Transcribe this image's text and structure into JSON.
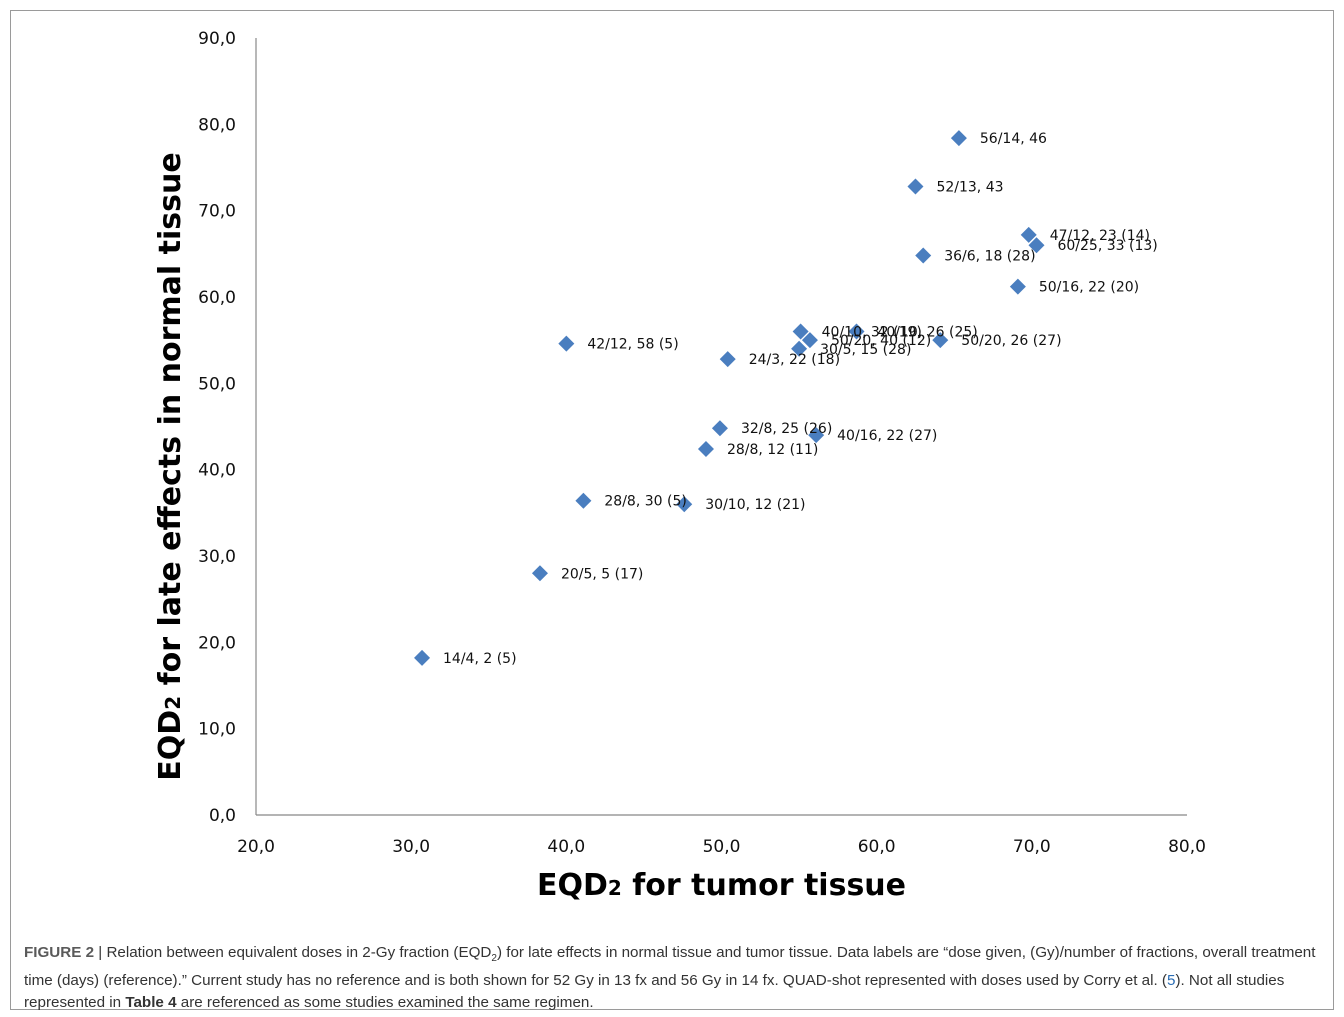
{
  "chart_data": {
    "type": "scatter",
    "xlabel": "EQD2 for tumor tissue",
    "ylabel": "EQD2 for late effects in normal tissue",
    "xlim": [
      20,
      80
    ],
    "ylim": [
      0,
      90
    ],
    "x_ticks": [
      "20,0",
      "30,0",
      "40,0",
      "50,0",
      "60,0",
      "70,0",
      "80,0"
    ],
    "y_ticks": [
      "0,0",
      "10,0",
      "20,0",
      "30,0",
      "40,0",
      "50,0",
      "60,0",
      "70,0",
      "80,0",
      "90,0"
    ],
    "marker": "diamond",
    "marker_color": "#4a7ebf",
    "grid": false,
    "points": [
      {
        "x": 30.7,
        "y": 18.2,
        "label": "14/4, 2 (5)"
      },
      {
        "x": 38.3,
        "y": 28.0,
        "label": "20/5, 5 (17)"
      },
      {
        "x": 41.1,
        "y": 36.4,
        "label": "28/8, 30 (5)"
      },
      {
        "x": 47.6,
        "y": 36.0,
        "label": "30/10, 12 (21)"
      },
      {
        "x": 40.0,
        "y": 54.6,
        "label": "42/12, 58 (5)"
      },
      {
        "x": 49.0,
        "y": 42.4,
        "label": "28/8, 12 (11)"
      },
      {
        "x": 49.9,
        "y": 44.8,
        "label": "32/8, 25 (26)"
      },
      {
        "x": 56.1,
        "y": 44.0,
        "label": "40/16, 22 (27)"
      },
      {
        "x": 50.4,
        "y": 52.8,
        "label": "24/3, 22 (18)"
      },
      {
        "x": 55.0,
        "y": 54.0,
        "label": "30/5, 15 (28)"
      },
      {
        "x": 55.1,
        "y": 56.0,
        "label": "40/10, 32 (19)"
      },
      {
        "x": 55.7,
        "y": 55.0,
        "label": "50/20, 40 (12)"
      },
      {
        "x": 58.7,
        "y": 56.0,
        "label": "40/10, 26 (25)"
      },
      {
        "x": 64.1,
        "y": 55.0,
        "label": "50/20, 26 (27)"
      },
      {
        "x": 63.0,
        "y": 64.8,
        "label": "36/6, 18 (28)"
      },
      {
        "x": 69.1,
        "y": 61.2,
        "label": "50/16, 22 (20)"
      },
      {
        "x": 69.8,
        "y": 67.2,
        "label": "47/12, 23 (14)"
      },
      {
        "x": 70.3,
        "y": 66.0,
        "label": "60/25, 33 (13)"
      },
      {
        "x": 62.5,
        "y": 72.8,
        "label": "52/13, 43"
      },
      {
        "x": 65.3,
        "y": 78.4,
        "label": "56/14, 46"
      }
    ]
  },
  "caption": {
    "tag": "FIGURE 2",
    "sep": " | ",
    "text1": "Relation between equivalent doses in 2-Gy fraction (EQD",
    "sub": "2",
    "text2": ") for late effects in normal tissue and tumor tissue. Data labels are “dose given, (Gy)/number of fractions, overall treatment time (days) (reference).” Current study has no reference and is both shown for 52 Gy in 13 fx and 56 Gy in 14 fx. QUAD-shot represented with doses used by Corry et al. (",
    "ref": "5",
    "text3": "). Not all studies represented in ",
    "bold": "Table 4",
    "text4": " are referenced as some studies examined the same regimen."
  }
}
